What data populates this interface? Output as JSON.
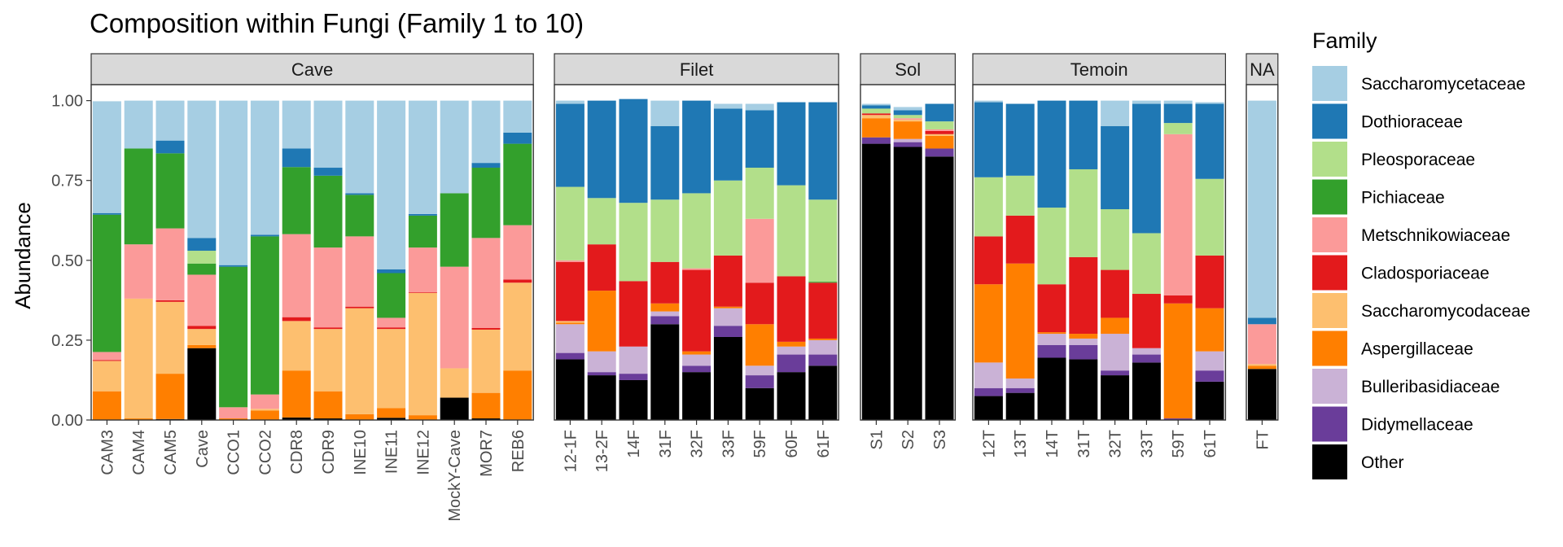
{
  "chart_data": {
    "type": "bar",
    "stacked": true,
    "title": "Composition within Fungi (Family 1 to 10)",
    "xlabel": "",
    "ylabel": "Abundance",
    "ylim": [
      0,
      1.05
    ],
    "yticks": [
      "0.00",
      "0.25",
      "0.50",
      "0.75",
      "1.00"
    ],
    "legend": {
      "title": "Family",
      "position": "right"
    },
    "families": [
      "Saccharomycetaceae",
      "Dothioraceae",
      "Pleosporaceae",
      "Pichiaceae",
      "Metschnikowiaceae",
      "Cladosporiaceae",
      "Saccharomycodaceae",
      "Aspergillaceae",
      "Bulleribasidiaceae",
      "Didymellaceae",
      "Other"
    ],
    "colors": {
      "Saccharomycetaceae": "#A6CEE3",
      "Dothioraceae": "#1F78B4",
      "Pleosporaceae": "#B2DF8A",
      "Pichiaceae": "#33A02C",
      "Metschnikowiaceae": "#FB9A99",
      "Cladosporiaceae": "#E31A1C",
      "Saccharomycodaceae": "#FDBF6F",
      "Aspergillaceae": "#FF7F00",
      "Bulleribasidiaceae": "#CAB2D6",
      "Didymellaceae": "#6A3D9A",
      "Other": "#000000"
    },
    "stack_order_bottom_to_top": [
      "Other",
      "Didymellaceae",
      "Bulleribasidiaceae",
      "Aspergillaceae",
      "Saccharomycodaceae",
      "Cladosporiaceae",
      "Metschnikowiaceae",
      "Pichiaceae",
      "Pleosporaceae",
      "Dothioraceae",
      "Saccharomycetaceae"
    ],
    "panels": [
      {
        "name": "Cave",
        "samples": [
          {
            "x": "CAM3",
            "values": {
              "Other": 0,
              "Didymellaceae": 0,
              "Bulleribasidiaceae": 0,
              "Aspergillaceae": 0.09,
              "Saccharomycodaceae": 0.095,
              "Cladosporiaceae": 0.003,
              "Metschnikowiaceae": 0.025,
              "Pichiaceae": 0.43,
              "Pleosporaceae": 0,
              "Dothioraceae": 0.005,
              "Saccharomycetaceae": 0.35
            }
          },
          {
            "x": "CAM4",
            "values": {
              "Other": 0,
              "Didymellaceae": 0,
              "Bulleribasidiaceae": 0,
              "Aspergillaceae": 0.005,
              "Saccharomycodaceae": 0.375,
              "Cladosporiaceae": 0,
              "Metschnikowiaceae": 0.17,
              "Pichiaceae": 0.3,
              "Pleosporaceae": 0,
              "Dothioraceae": 0,
              "Saccharomycetaceae": 0.15
            }
          },
          {
            "x": "CAM5",
            "values": {
              "Other": 0.003,
              "Didymellaceae": 0,
              "Bulleribasidiaceae": 0,
              "Aspergillaceae": 0.142,
              "Saccharomycodaceae": 0.225,
              "Cladosporiaceae": 0.005,
              "Metschnikowiaceae": 0.225,
              "Pichiaceae": 0.235,
              "Pleosporaceae": 0,
              "Dothioraceae": 0.04,
              "Saccharomycetaceae": 0.125
            }
          },
          {
            "x": "Cave",
            "values": {
              "Other": 0.225,
              "Didymellaceae": 0,
              "Bulleribasidiaceae": 0,
              "Aspergillaceae": 0.01,
              "Saccharomycodaceae": 0.05,
              "Cladosporiaceae": 0.01,
              "Metschnikowiaceae": 0.16,
              "Pichiaceae": 0.035,
              "Pleosporaceae": 0.04,
              "Dothioraceae": 0.04,
              "Saccharomycetaceae": 0.43
            }
          },
          {
            "x": "CCO1",
            "values": {
              "Other": 0,
              "Didymellaceae": 0,
              "Bulleribasidiaceae": 0,
              "Aspergillaceae": 0.005,
              "Saccharomycodaceae": 0,
              "Cladosporiaceae": 0,
              "Metschnikowiaceae": 0.035,
              "Pichiaceae": 0.44,
              "Pleosporaceae": 0,
              "Dothioraceae": 0.005,
              "Saccharomycetaceae": 0.515
            }
          },
          {
            "x": "CCO2",
            "values": {
              "Other": 0,
              "Didymellaceae": 0,
              "Bulleribasidiaceae": 0,
              "Aspergillaceae": 0.03,
              "Saccharomycodaceae": 0.005,
              "Cladosporiaceae": 0,
              "Metschnikowiaceae": 0.045,
              "Pichiaceae": 0.495,
              "Pleosporaceae": 0,
              "Dothioraceae": 0.005,
              "Saccharomycetaceae": 0.42
            }
          },
          {
            "x": "CDR8",
            "values": {
              "Other": 0.008,
              "Didymellaceae": 0,
              "Bulleribasidiaceae": 0,
              "Aspergillaceae": 0.147,
              "Saccharomycodaceae": 0.155,
              "Cladosporiaceae": 0.012,
              "Metschnikowiaceae": 0.26,
              "Pichiaceae": 0.21,
              "Pleosporaceae": 0,
              "Dothioraceae": 0.058,
              "Saccharomycetaceae": 0.15
            }
          },
          {
            "x": "CDR9",
            "values": {
              "Other": 0.005,
              "Didymellaceae": 0,
              "Bulleribasidiaceae": 0,
              "Aspergillaceae": 0.085,
              "Saccharomycodaceae": 0.195,
              "Cladosporiaceae": 0.005,
              "Metschnikowiaceae": 0.25,
              "Pichiaceae": 0.225,
              "Pleosporaceae": 0,
              "Dothioraceae": 0.025,
              "Saccharomycetaceae": 0.21
            }
          },
          {
            "x": "INE10",
            "values": {
              "Other": 0,
              "Didymellaceae": 0,
              "Bulleribasidiaceae": 0,
              "Aspergillaceae": 0.018,
              "Saccharomycodaceae": 0.332,
              "Cladosporiaceae": 0.005,
              "Metschnikowiaceae": 0.22,
              "Pichiaceae": 0.13,
              "Pleosporaceae": 0,
              "Dothioraceae": 0.005,
              "Saccharomycetaceae": 0.29
            }
          },
          {
            "x": "INE11",
            "values": {
              "Other": 0.007,
              "Didymellaceae": 0,
              "Bulleribasidiaceae": 0,
              "Aspergillaceae": 0.03,
              "Saccharomycodaceae": 0.248,
              "Cladosporiaceae": 0.005,
              "Metschnikowiaceae": 0.03,
              "Pichiaceae": 0.14,
              "Pleosporaceae": 0,
              "Dothioraceae": 0.012,
              "Saccharomycetaceae": 0.528
            }
          },
          {
            "x": "INE12",
            "values": {
              "Other": 0,
              "Didymellaceae": 0,
              "Bulleribasidiaceae": 0,
              "Aspergillaceae": 0.015,
              "Saccharomycodaceae": 0.383,
              "Cladosporiaceae": 0.002,
              "Metschnikowiaceae": 0.14,
              "Pichiaceae": 0.1,
              "Pleosporaceae": 0,
              "Dothioraceae": 0.005,
              "Saccharomycetaceae": 0.355
            }
          },
          {
            "x": "MockY-Cave",
            "values": {
              "Other": 0.07,
              "Didymellaceae": 0,
              "Bulleribasidiaceae": 0,
              "Aspergillaceae": 0,
              "Saccharomycodaceae": 0.092,
              "Cladosporiaceae": 0,
              "Metschnikowiaceae": 0.318,
              "Pichiaceae": 0.23,
              "Pleosporaceae": 0,
              "Dothioraceae": 0,
              "Saccharomycetaceae": 0.29
            }
          },
          {
            "x": "MOR7",
            "values": {
              "Other": 0.005,
              "Didymellaceae": 0,
              "Bulleribasidiaceae": 0,
              "Aspergillaceae": 0.08,
              "Saccharomycodaceae": 0.198,
              "Cladosporiaceae": 0.005,
              "Metschnikowiaceae": 0.282,
              "Pichiaceae": 0.22,
              "Pleosporaceae": 0,
              "Dothioraceae": 0.015,
              "Saccharomycetaceae": 0.195
            }
          },
          {
            "x": "REB6",
            "values": {
              "Other": 0,
              "Didymellaceae": 0,
              "Bulleribasidiaceae": 0,
              "Aspergillaceae": 0.155,
              "Saccharomycodaceae": 0.275,
              "Cladosporiaceae": 0.01,
              "Metschnikowiaceae": 0.17,
              "Pichiaceae": 0.255,
              "Pleosporaceae": 0,
              "Dothioraceae": 0.035,
              "Saccharomycetaceae": 0.1
            }
          }
        ]
      },
      {
        "name": "Filet",
        "samples": [
          {
            "x": "12-1F",
            "values": {
              "Other": 0.19,
              "Didymellaceae": 0.02,
              "Bulleribasidiaceae": 0.09,
              "Aspergillaceae": 0.005,
              "Saccharomycodaceae": 0.005,
              "Cladosporiaceae": 0.185,
              "Metschnikowiaceae": 0.005,
              "Pichiaceae": 0,
              "Pleosporaceae": 0.23,
              "Dothioraceae": 0.26,
              "Saccharomycetaceae": 0.01
            }
          },
          {
            "x": "13-2F",
            "values": {
              "Other": 0.14,
              "Didymellaceae": 0.01,
              "Bulleribasidiaceae": 0.065,
              "Aspergillaceae": 0.19,
              "Saccharomycodaceae": 0,
              "Cladosporiaceae": 0.145,
              "Metschnikowiaceae": 0,
              "Pichiaceae": 0,
              "Pleosporaceae": 0.145,
              "Dothioraceae": 0.305,
              "Saccharomycetaceae": 0
            }
          },
          {
            "x": "14F",
            "values": {
              "Other": 0.125,
              "Didymellaceae": 0.02,
              "Bulleribasidiaceae": 0.085,
              "Aspergillaceae": 0,
              "Saccharomycodaceae": 0,
              "Cladosporiaceae": 0.205,
              "Metschnikowiaceae": 0,
              "Pichiaceae": 0,
              "Pleosporaceae": 0.245,
              "Dothioraceae": 0.325,
              "Saccharomycetaceae": 0
            }
          },
          {
            "x": "31F",
            "values": {
              "Other": 0.3,
              "Didymellaceae": 0.025,
              "Bulleribasidiaceae": 0.015,
              "Aspergillaceae": 0.025,
              "Saccharomycodaceae": 0,
              "Cladosporiaceae": 0.13,
              "Metschnikowiaceae": 0,
              "Pichiaceae": 0,
              "Pleosporaceae": 0.195,
              "Dothioraceae": 0.23,
              "Saccharomycetaceae": 0.08
            }
          },
          {
            "x": "32F",
            "values": {
              "Other": 0.15,
              "Didymellaceae": 0.02,
              "Bulleribasidiaceae": 0.035,
              "Aspergillaceae": 0.01,
              "Saccharomycodaceae": 0,
              "Cladosporiaceae": 0.255,
              "Metschnikowiaceae": 0.005,
              "Pichiaceae": 0,
              "Pleosporaceae": 0.235,
              "Dothioraceae": 0.29,
              "Saccharomycetaceae": 0
            }
          },
          {
            "x": "33F",
            "values": {
              "Other": 0.26,
              "Didymellaceae": 0.035,
              "Bulleribasidiaceae": 0.055,
              "Aspergillaceae": 0.005,
              "Saccharomycodaceae": 0,
              "Cladosporiaceae": 0.16,
              "Metschnikowiaceae": 0,
              "Pichiaceae": 0,
              "Pleosporaceae": 0.235,
              "Dothioraceae": 0.225,
              "Saccharomycetaceae": 0.015
            }
          },
          {
            "x": "59F",
            "values": {
              "Other": 0.1,
              "Didymellaceae": 0.04,
              "Bulleribasidiaceae": 0.03,
              "Aspergillaceae": 0.13,
              "Saccharomycodaceae": 0,
              "Cladosporiaceae": 0.13,
              "Metschnikowiaceae": 0.2,
              "Pichiaceae": 0,
              "Pleosporaceae": 0.16,
              "Dothioraceae": 0.18,
              "Saccharomycetaceae": 0.02
            }
          },
          {
            "x": "60F",
            "values": {
              "Other": 0.15,
              "Didymellaceae": 0.055,
              "Bulleribasidiaceae": 0.025,
              "Aspergillaceae": 0.015,
              "Saccharomycodaceae": 0,
              "Cladosporiaceae": 0.205,
              "Metschnikowiaceae": 0,
              "Pichiaceae": 0,
              "Pleosporaceae": 0.285,
              "Dothioraceae": 0.26,
              "Saccharomycetaceae": 0
            }
          },
          {
            "x": "61F",
            "values": {
              "Other": 0.17,
              "Didymellaceae": 0.035,
              "Bulleribasidiaceae": 0.045,
              "Aspergillaceae": 0.005,
              "Saccharomycodaceae": 0,
              "Cladosporiaceae": 0.175,
              "Metschnikowiaceae": 0,
              "Pichiaceae": 0.003,
              "Pleosporaceae": 0.257,
              "Dothioraceae": 0.305,
              "Saccharomycetaceae": 0
            }
          }
        ]
      },
      {
        "name": "Sol",
        "samples": [
          {
            "x": "S1",
            "values": {
              "Other": 0.865,
              "Didymellaceae": 0.02,
              "Bulleribasidiaceae": 0,
              "Aspergillaceae": 0.06,
              "Saccharomycodaceae": 0.01,
              "Cladosporiaceae": 0.005,
              "Metschnikowiaceae": 0,
              "Pichiaceae": 0,
              "Pleosporaceae": 0.015,
              "Dothioraceae": 0.01,
              "Saccharomycetaceae": 0.005
            }
          },
          {
            "x": "S2",
            "values": {
              "Other": 0.855,
              "Didymellaceae": 0.015,
              "Bulleribasidiaceae": 0.01,
              "Aspergillaceae": 0.055,
              "Saccharomycodaceae": 0.005,
              "Cladosporiaceae": 0,
              "Metschnikowiaceae": 0.005,
              "Pichiaceae": 0,
              "Pleosporaceae": 0.01,
              "Dothioraceae": 0.015,
              "Saccharomycetaceae": 0.01
            }
          },
          {
            "x": "S3",
            "values": {
              "Other": 0.825,
              "Didymellaceae": 0.025,
              "Bulleribasidiaceae": 0,
              "Aspergillaceae": 0.04,
              "Saccharomycodaceae": 0.005,
              "Cladosporiaceae": 0.01,
              "Metschnikowiaceae": 0.005,
              "Pichiaceae": 0,
              "Pleosporaceae": 0.025,
              "Dothioraceae": 0.055,
              "Saccharomycetaceae": 0
            }
          }
        ]
      },
      {
        "name": "Temoin",
        "samples": [
          {
            "x": "12T",
            "values": {
              "Other": 0.075,
              "Didymellaceae": 0.025,
              "Bulleribasidiaceae": 0.08,
              "Aspergillaceae": 0.245,
              "Saccharomycodaceae": 0,
              "Cladosporiaceae": 0.15,
              "Metschnikowiaceae": 0,
              "Pichiaceae": 0,
              "Pleosporaceae": 0.185,
              "Dothioraceae": 0.235,
              "Saccharomycetaceae": 0.005
            }
          },
          {
            "x": "13T",
            "values": {
              "Other": 0.085,
              "Didymellaceae": 0.015,
              "Bulleribasidiaceae": 0.03,
              "Aspergillaceae": 0.36,
              "Saccharomycodaceae": 0,
              "Cladosporiaceae": 0.15,
              "Metschnikowiaceae": 0,
              "Pichiaceae": 0,
              "Pleosporaceae": 0.125,
              "Dothioraceae": 0.225,
              "Saccharomycetaceae": 0
            }
          },
          {
            "x": "14T",
            "values": {
              "Other": 0.195,
              "Didymellaceae": 0.04,
              "Bulleribasidiaceae": 0.035,
              "Aspergillaceae": 0.005,
              "Saccharomycodaceae": 0,
              "Cladosporiaceae": 0.15,
              "Metschnikowiaceae": 0,
              "Pichiaceae": 0,
              "Pleosporaceae": 0.24,
              "Dothioraceae": 0.335,
              "Saccharomycetaceae": 0
            }
          },
          {
            "x": "31T",
            "values": {
              "Other": 0.19,
              "Didymellaceae": 0.045,
              "Bulleribasidiaceae": 0.02,
              "Aspergillaceae": 0.015,
              "Saccharomycodaceae": 0,
              "Cladosporiaceae": 0.24,
              "Metschnikowiaceae": 0,
              "Pichiaceae": 0,
              "Pleosporaceae": 0.275,
              "Dothioraceae": 0.215,
              "Saccharomycetaceae": 0
            }
          },
          {
            "x": "32T",
            "values": {
              "Other": 0.14,
              "Didymellaceae": 0.015,
              "Bulleribasidiaceae": 0.115,
              "Aspergillaceae": 0.05,
              "Saccharomycodaceae": 0,
              "Cladosporiaceae": 0.15,
              "Metschnikowiaceae": 0,
              "Pichiaceae": 0,
              "Pleosporaceae": 0.19,
              "Dothioraceae": 0.26,
              "Saccharomycetaceae": 0.08
            }
          },
          {
            "x": "33T",
            "values": {
              "Other": 0.18,
              "Didymellaceae": 0.025,
              "Bulleribasidiaceae": 0.02,
              "Aspergillaceae": 0,
              "Saccharomycodaceae": 0,
              "Cladosporiaceae": 0.17,
              "Metschnikowiaceae": 0,
              "Pichiaceae": 0,
              "Pleosporaceae": 0.19,
              "Dothioraceae": 0.405,
              "Saccharomycetaceae": 0.01
            }
          },
          {
            "x": "59T",
            "values": {
              "Other": 0,
              "Didymellaceae": 0.005,
              "Bulleribasidiaceae": 0,
              "Aspergillaceae": 0.36,
              "Saccharomycodaceae": 0,
              "Cladosporiaceae": 0.025,
              "Metschnikowiaceae": 0.505,
              "Pichiaceae": 0,
              "Pleosporaceae": 0.035,
              "Dothioraceae": 0.06,
              "Saccharomycetaceae": 0.01
            }
          },
          {
            "x": "61T",
            "values": {
              "Other": 0.12,
              "Didymellaceae": 0.035,
              "Bulleribasidiaceae": 0.06,
              "Aspergillaceae": 0.135,
              "Saccharomycodaceae": 0,
              "Cladosporiaceae": 0.165,
              "Metschnikowiaceae": 0,
              "Pichiaceae": 0,
              "Pleosporaceae": 0.24,
              "Dothioraceae": 0.235,
              "Saccharomycetaceae": 0.005
            }
          }
        ]
      },
      {
        "name": "NA",
        "samples": [
          {
            "x": "FT",
            "values": {
              "Other": 0.16,
              "Didymellaceae": 0,
              "Bulleribasidiaceae": 0,
              "Aspergillaceae": 0.01,
              "Saccharomycodaceae": 0.005,
              "Cladosporiaceae": 0,
              "Metschnikowiaceae": 0.125,
              "Pichiaceae": 0,
              "Pleosporaceae": 0,
              "Dothioraceae": 0.02,
              "Saccharomycetaceae": 0.68
            }
          }
        ]
      }
    ]
  }
}
